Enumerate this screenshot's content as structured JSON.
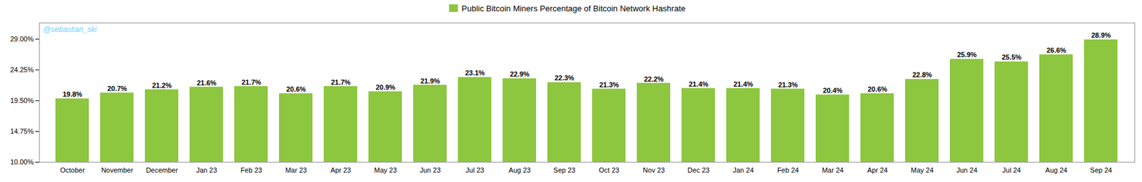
{
  "chart_data": {
    "type": "bar",
    "categories": [
      "October",
      "November",
      "December",
      "Jan 23",
      "Feb 23",
      "Mar 23",
      "Apr 23",
      "May 23",
      "Jun 23",
      "Jul 23",
      "Aug 23",
      "Sep 23",
      "Oct 23",
      "Nov 23",
      "Dec 23",
      "Jan 24",
      "Feb 24",
      "Mar 24",
      "Apr 24",
      "May 24",
      "Jun 24",
      "Jul 24",
      "Aug 24",
      "Sep 24"
    ],
    "series": [
      {
        "name": "Public Bitcoin Miners Percentage of Bitcoin Network Hashrate",
        "color": "#8DC63F",
        "values": [
          19.8,
          20.7,
          21.2,
          21.6,
          21.7,
          20.6,
          21.7,
          20.9,
          21.9,
          23.1,
          22.9,
          22.3,
          21.3,
          22.2,
          21.4,
          21.4,
          21.3,
          20.4,
          20.6,
          22.8,
          25.9,
          25.5,
          26.6,
          28.9
        ],
        "value_labels": [
          "19.8%",
          "20.7%",
          "21.2%",
          "21.6%",
          "21.7%",
          "20.6%",
          "21.7%",
          "20.9%",
          "21.9%",
          "23.1%",
          "22.9%",
          "22.3%",
          "21.3%",
          "22.2%",
          "21.4%",
          "21.4%",
          "21.3%",
          "20.4%",
          "20.6%",
          "22.8%",
          "25.9%",
          "25.5%",
          "26.6%",
          "28.9%"
        ]
      }
    ],
    "ylim": [
      10.0,
      31.5
    ],
    "yticks": [
      {
        "value": 10.0,
        "label": "10.00%"
      },
      {
        "value": 14.75,
        "label": "14.75%"
      },
      {
        "value": 19.5,
        "label": "19.50%"
      },
      {
        "value": 24.25,
        "label": "24.25%"
      },
      {
        "value": 29.0,
        "label": "29.00%"
      }
    ],
    "grid": false,
    "legend": "top",
    "data_labels": true,
    "annotations": [
      {
        "text": "@sebastian_ski",
        "color": "#7ecef4"
      }
    ]
  }
}
